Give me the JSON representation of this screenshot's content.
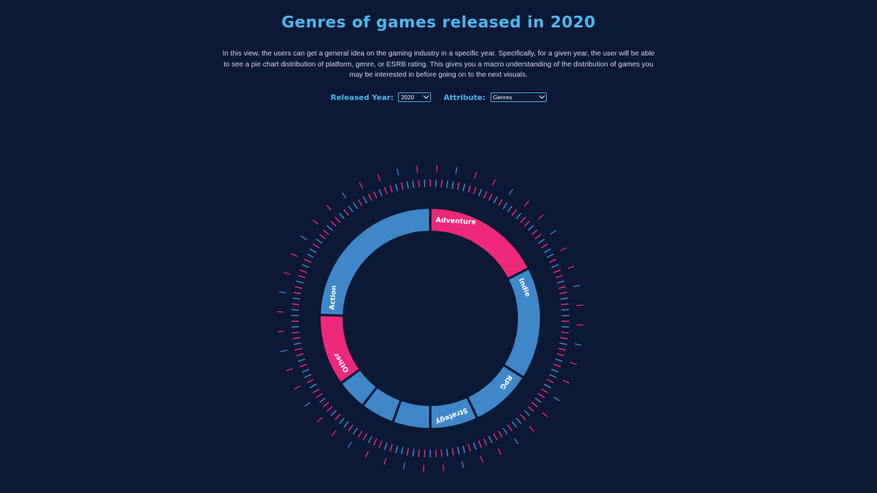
{
  "header": {
    "title": "Genres of games released in 2020",
    "description": "In this view, the users can get a general idea on the gaming industry in a specific year. Specifically, for a given year, the user will be able to see a pie chart distribution of platform, genre, or ESRB rating. This gives you a macro understanding of the distribution of games you may be interested in before going on to the next visuals."
  },
  "controls": {
    "year_label": "Released Year:",
    "year_value": "2020",
    "attribute_label": "Attribute:",
    "attribute_value": "Genres"
  },
  "colors": {
    "background": "#0b1934",
    "accent_blue": "#3f87c9",
    "accent_pink": "#ee2878",
    "title_blue": "#4db8ef"
  },
  "chart_data": {
    "type": "pie",
    "style": "donut",
    "segments": [
      {
        "label": "Adventure",
        "value": 17.5,
        "color": "#ee2878"
      },
      {
        "label": "Indie",
        "value": 16.5,
        "color": "#3f87c9"
      },
      {
        "label": "RPG",
        "value": 9.0,
        "color": "#3f87c9"
      },
      {
        "label": "Strategy",
        "value": 7.0,
        "color": "#3f87c9"
      },
      {
        "label": "",
        "value": 5.5,
        "color": "#3f87c9"
      },
      {
        "label": "",
        "value": 5.0,
        "color": "#3f87c9"
      },
      {
        "label": "",
        "value": 4.5,
        "color": "#3f87c9"
      },
      {
        "label": "Other",
        "value": 10.5,
        "color": "#ee2878"
      },
      {
        "label": "Action",
        "value": 24.5,
        "color": "#3f87c9"
      }
    ]
  }
}
